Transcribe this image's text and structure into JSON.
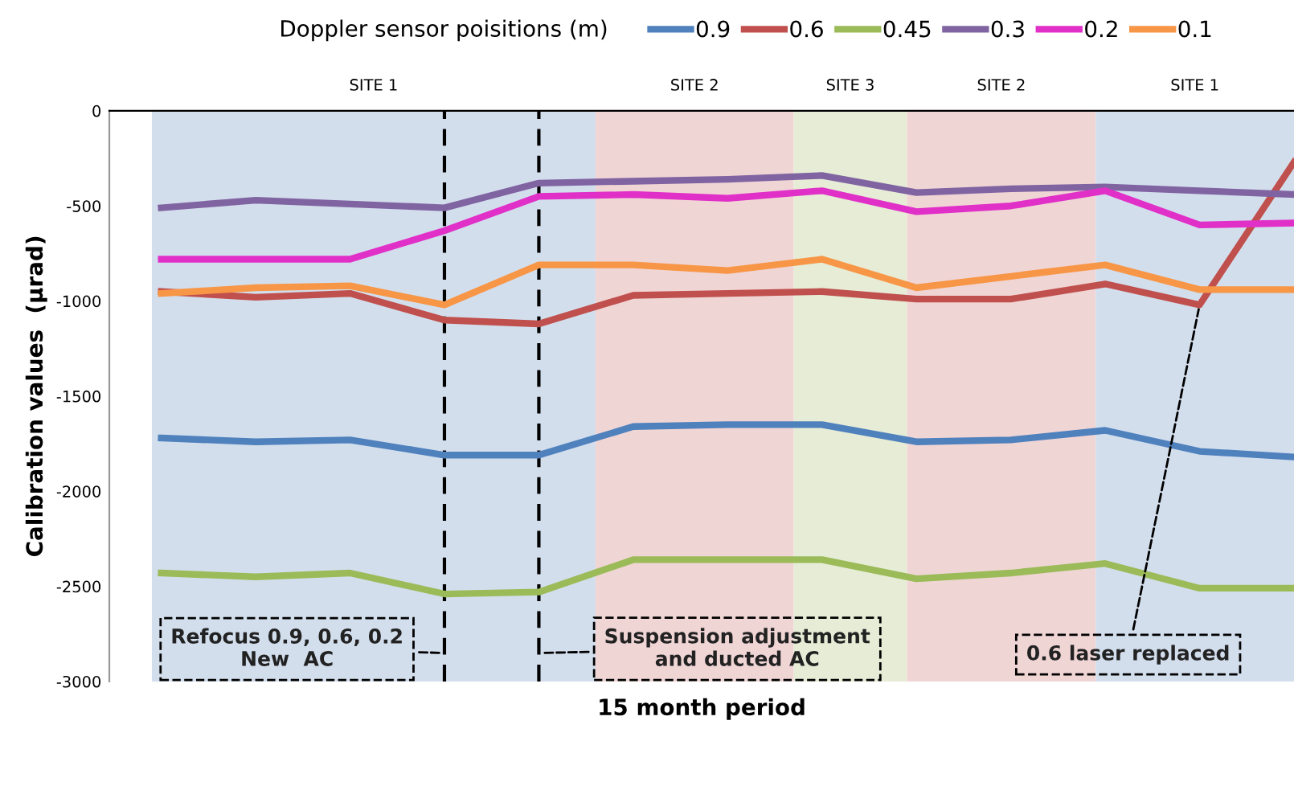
{
  "chart_data": {
    "type": "line",
    "xlabel": "15 month period",
    "ylabel": "Calibration values  (µrad)",
    "legend_title": "Doppler sensor poisitions (m)",
    "categories": [
      null,
      null,
      null,
      null,
      null,
      null,
      null,
      null,
      null,
      null,
      null,
      null,
      null
    ],
    "series": [
      {
        "name": "0.9",
        "color": "#4f81bd",
        "values": [
          -1720,
          -1740,
          -1730,
          -1810,
          -1810,
          -1660,
          -1650,
          -1650,
          -1740,
          -1730,
          -1680,
          -1790,
          -1820
        ]
      },
      {
        "name": "0.6",
        "color": "#c0504d",
        "values": [
          -950,
          -980,
          -960,
          -1100,
          -1120,
          -970,
          -960,
          -950,
          -990,
          -990,
          -910,
          -1020,
          -270
        ]
      },
      {
        "name": "0.45",
        "color": "#9bbb59",
        "values": [
          -2430,
          -2450,
          -2430,
          -2540,
          -2530,
          -2360,
          -2360,
          -2360,
          -2460,
          -2430,
          -2380,
          -2510,
          -2510
        ]
      },
      {
        "name": "0.3",
        "color": "#8064a2",
        "values": [
          -510,
          -470,
          -490,
          -510,
          -380,
          -370,
          -360,
          -340,
          -430,
          -410,
          -400,
          -420,
          -440
        ]
      },
      {
        "name": "0.2",
        "color": "#e030c8",
        "values": [
          -780,
          -780,
          -780,
          -630,
          -450,
          -440,
          -460,
          -420,
          -530,
          -500,
          -420,
          -600,
          -590
        ]
      },
      {
        "name": "0.1",
        "color": "#f79646",
        "values": [
          -960,
          -930,
          -920,
          -1020,
          -810,
          -810,
          -840,
          -780,
          -930,
          -870,
          -810,
          -940,
          -940
        ]
      }
    ],
    "ylim": [
      -3000,
      0
    ],
    "yticks": [
      0,
      -500,
      -1000,
      -1500,
      -2000,
      -2500,
      -3000
    ],
    "annotations": [
      "Refocus 0.9, 0.6, 0.2\nNew  AC",
      "Suspension adjustment\nand ducted AC",
      "0.6 laser replaced",
      "SITE 1",
      "SITE 2",
      "SITE 3",
      "SITE 2",
      "SITE 1"
    ],
    "legend": "top",
    "grid": false,
    "marker": "none",
    "line_style": "solid"
  }
}
